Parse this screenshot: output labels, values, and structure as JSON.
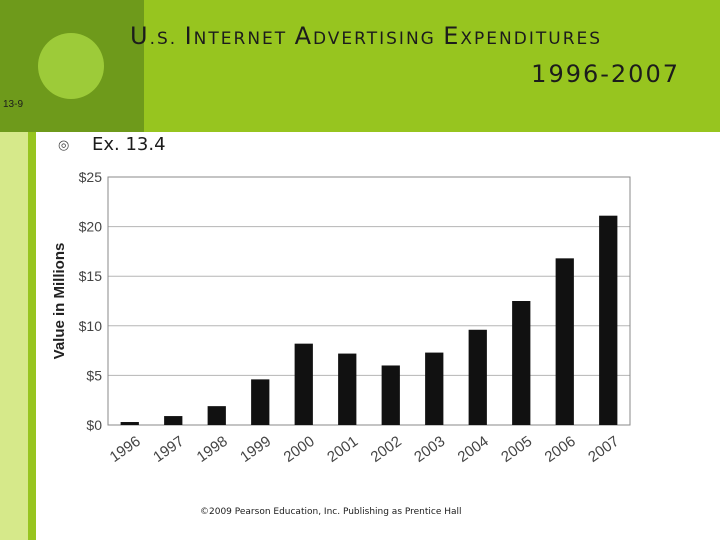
{
  "slide": {
    "title_parts": [
      {
        "text": "U",
        "cls": ""
      },
      {
        "text": ".S. ",
        "cls": "sm"
      },
      {
        "text": "I",
        "cls": ""
      },
      {
        "text": "NTERNET ",
        "cls": "sm"
      },
      {
        "text": "A",
        "cls": ""
      },
      {
        "text": "DVERTISING ",
        "cls": "sm"
      },
      {
        "text": "E",
        "cls": ""
      },
      {
        "text": "XPENDITURES",
        "cls": "sm"
      }
    ],
    "title_line2": "1996-2007",
    "slide_number": "13-9",
    "bullet_icon": "◎",
    "bullet_text": "Ex. 13.4",
    "copyright": "©2009 Pearson Education, Inc. Publishing as Prentice Hall"
  },
  "colors": {
    "header_green": "#97c51f",
    "header_dark_green": "#6e9a1b",
    "bar": "#111111"
  },
  "icons": {
    "bullet": "target-bullet-icon"
  },
  "chart_data": {
    "type": "bar",
    "title": "",
    "xlabel": "",
    "ylabel": "Value in Millions",
    "categories": [
      "1996",
      "1997",
      "1998",
      "1999",
      "2000",
      "2001",
      "2002",
      "2003",
      "2004",
      "2005",
      "2006",
      "2007"
    ],
    "values": [
      0.3,
      0.9,
      1.9,
      4.6,
      8.2,
      7.2,
      6.0,
      7.3,
      9.6,
      12.5,
      16.8,
      21.1
    ],
    "ylim": [
      0,
      25
    ],
    "yticks": [
      0,
      5,
      10,
      15,
      20,
      25
    ],
    "ytick_labels": [
      "$0",
      "$5",
      "$10",
      "$15",
      "$20",
      "$25"
    ],
    "grid": true
  }
}
